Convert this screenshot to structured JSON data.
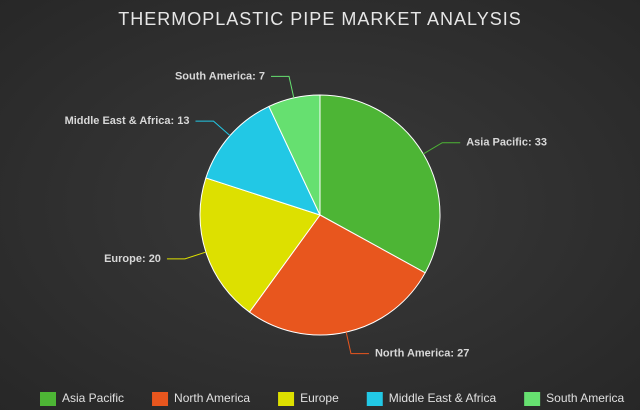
{
  "chart_data": {
    "type": "pie",
    "title": "THERMOPLASTIC PIPE MARKET ANALYSIS",
    "categories": [
      "Asia Pacific",
      "North America",
      "Europe",
      "Middle East & Africa",
      "South America"
    ],
    "values": [
      33,
      27,
      20,
      13,
      7
    ],
    "value_labels": [
      "Asia Pacific: 33",
      "North America: 27",
      "Europe: 20",
      "Middle East & Africa: 13",
      "South America: 7"
    ],
    "colors": [
      "#4db535",
      "#e8561e",
      "#dde000",
      "#22c8e5",
      "#66e070"
    ],
    "legend": "bottom"
  }
}
